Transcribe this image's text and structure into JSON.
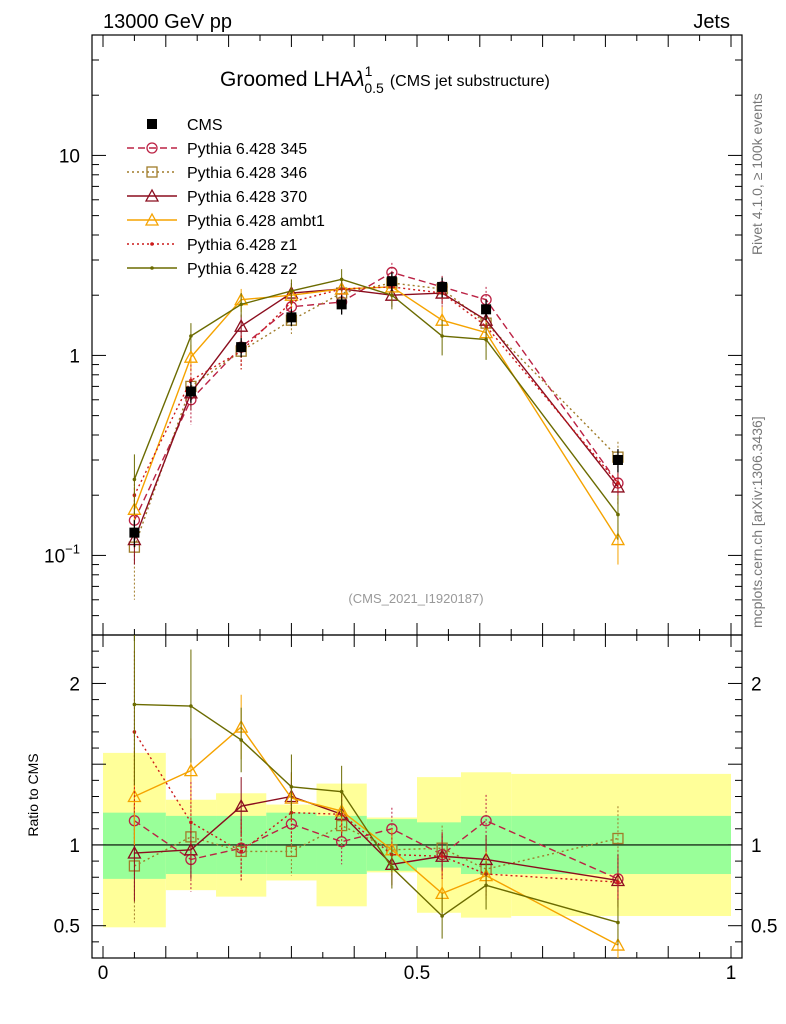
{
  "header": {
    "left": "13000 GeV pp",
    "right": "Jets"
  },
  "title": {
    "main": "Groomed LHA",
    "lambda": "λ",
    "sup": "1",
    "sub": "0.5",
    "suffix": "(CMS jet substructure)"
  },
  "side_labels": {
    "upper": "Rivet 4.1.0, ≥ 100k events",
    "lower": "mcplots.cern.ch [arXiv:1306.3436]"
  },
  "analysis_id": "(CMS_2021_I1920187)",
  "ratio_ylabel": "Ratio to CMS",
  "colors": {
    "data": "#000000",
    "band_inner": "#99ff99",
    "band_outer": "#ffff99"
  },
  "chart_data": [
    {
      "type": "line",
      "panel": "main",
      "yscale": "log",
      "xlim": [
        0,
        1
      ],
      "ylim": [
        0.04,
        40
      ],
      "yticks": [
        {
          "v": 0.1,
          "b": "10",
          "e": "−1"
        },
        {
          "v": 1,
          "t": "1"
        },
        {
          "v": 10,
          "t": "10"
        }
      ],
      "xticks": [
        {
          "v": 0,
          "t": "0"
        },
        {
          "v": 0.5,
          "t": "0.5"
        },
        {
          "v": 1,
          "t": "1"
        }
      ],
      "x": [
        0.05,
        0.14,
        0.22,
        0.3,
        0.38,
        0.46,
        0.54,
        0.61,
        0.82
      ],
      "data_series": {
        "name": "CMS",
        "values": [
          0.13,
          0.66,
          1.1,
          1.55,
          1.8,
          2.35,
          2.2,
          1.7,
          0.3
        ],
        "errors": [
          0.02,
          0.08,
          0.12,
          0.15,
          0.2,
          0.25,
          0.25,
          0.2,
          0.04
        ]
      },
      "series": [
        {
          "name": "Pythia 6.428 345",
          "color": "#bb2244",
          "marker": "circle",
          "dash": "7,4",
          "values": [
            0.15,
            0.6,
            1.1,
            1.75,
            1.85,
            2.6,
            2.2,
            1.9,
            0.23
          ],
          "errors": [
            0.04,
            0.15,
            0.22,
            0.25,
            0.25,
            0.3,
            0.3,
            0.3,
            0.05
          ]
        },
        {
          "name": "Pythia 6.428 346",
          "color": "#a07c2a",
          "marker": "square",
          "dash": "2,3",
          "values": [
            0.11,
            0.7,
            1.05,
            1.5,
            2.05,
            2.3,
            2.15,
            1.45,
            0.31
          ],
          "errors": [
            0.05,
            0.15,
            0.2,
            0.22,
            0.25,
            0.3,
            0.3,
            0.25,
            0.06
          ]
        },
        {
          "name": "Pythia 6.428 370",
          "color": "#8b0d1e",
          "marker": "triangle",
          "dash": "",
          "values": [
            0.12,
            0.65,
            1.4,
            2.05,
            2.15,
            2.0,
            2.05,
            1.5,
            0.22
          ],
          "errors": [
            0.03,
            0.12,
            0.2,
            0.25,
            0.25,
            0.25,
            0.25,
            0.22,
            0.04
          ]
        },
        {
          "name": "Pythia 6.428 ambt1",
          "color": "#f5a300",
          "marker": "triangle",
          "dash": "",
          "values": [
            0.17,
            0.98,
            1.9,
            2.0,
            2.15,
            2.2,
            1.5,
            1.3,
            0.12
          ],
          "errors": [
            0.05,
            0.15,
            0.25,
            0.25,
            0.3,
            0.3,
            0.25,
            0.2,
            0.03
          ]
        },
        {
          "name": "Pythia 6.428 z1",
          "color": "#cc1a1a",
          "marker": "dot",
          "dash": "2,3",
          "values": [
            0.2,
            0.75,
            1.05,
            1.85,
            2.15,
            2.2,
            2.05,
            1.4,
            0.23
          ],
          "errors": [
            0.05,
            0.15,
            0.2,
            0.25,
            0.3,
            0.3,
            0.3,
            0.25,
            0.05
          ]
        },
        {
          "name": "Pythia 6.428 z2",
          "color": "#6b6b00",
          "marker": "dot",
          "dash": "",
          "values": [
            0.24,
            1.25,
            1.8,
            2.1,
            2.4,
            2.0,
            1.25,
            1.2,
            0.16
          ],
          "errors": [
            0.08,
            0.2,
            0.25,
            0.3,
            0.3,
            0.3,
            0.25,
            0.25,
            0.04
          ]
        }
      ]
    },
    {
      "type": "line",
      "panel": "ratio",
      "ylim": [
        0.3,
        2.3
      ],
      "yticks": [
        {
          "v": 0.5,
          "t": "0.5"
        },
        {
          "v": 1,
          "t": "1"
        },
        {
          "v": 2,
          "t": "2"
        }
      ],
      "xticks": [
        {
          "v": 0,
          "t": "0"
        },
        {
          "v": 0.5,
          "t": "0.5"
        },
        {
          "v": 1,
          "t": "1"
        }
      ],
      "x": [
        0.05,
        0.14,
        0.22,
        0.3,
        0.38,
        0.46,
        0.54,
        0.61,
        0.82
      ],
      "bands": {
        "edges": [
          0,
          0.1,
          0.18,
          0.26,
          0.34,
          0.42,
          0.5,
          0.57,
          0.65,
          1.0
        ],
        "inner": [
          [
            0.79,
            1.2
          ],
          [
            0.82,
            1.18
          ],
          [
            0.82,
            1.18
          ],
          [
            0.82,
            1.2
          ],
          [
            0.82,
            1.18
          ],
          [
            0.84,
            1.16
          ],
          [
            0.86,
            1.14
          ],
          [
            0.82,
            1.18
          ],
          [
            0.82,
            1.18
          ]
        ],
        "outer": [
          [
            0.49,
            1.57
          ],
          [
            0.72,
            1.28
          ],
          [
            0.68,
            1.32
          ],
          [
            0.78,
            1.25
          ],
          [
            0.62,
            1.38
          ],
          [
            0.83,
            1.17
          ],
          [
            0.58,
            1.42
          ],
          [
            0.55,
            1.45
          ],
          [
            0.56,
            1.44
          ]
        ]
      },
      "series": [
        {
          "name": "Pythia 6.428 345",
          "values": [
            1.15,
            0.91,
            0.98,
            1.13,
            1.02,
            1.1,
            0.94,
            1.15,
            0.79
          ],
          "errors": [
            0.25,
            0.2,
            0.18,
            0.15,
            0.14,
            0.13,
            0.14,
            0.16,
            0.18
          ]
        },
        {
          "name": "Pythia 6.428 346",
          "values": [
            0.87,
            1.05,
            0.96,
            0.96,
            1.12,
            0.97,
            0.98,
            0.85,
            1.04
          ],
          "errors": [
            0.35,
            0.2,
            0.18,
            0.15,
            0.14,
            0.13,
            0.14,
            0.16,
            0.2
          ]
        },
        {
          "name": "Pythia 6.428 370",
          "values": [
            0.95,
            0.97,
            1.24,
            1.3,
            1.19,
            0.88,
            0.93,
            0.91,
            0.78
          ],
          "errors": [
            0.3,
            0.18,
            0.18,
            0.15,
            0.14,
            0.13,
            0.14,
            0.15,
            0.16
          ]
        },
        {
          "name": "Pythia 6.428 ambt1",
          "values": [
            1.3,
            1.46,
            1.73,
            1.29,
            1.21,
            0.97,
            0.7,
            0.81,
            0.38
          ],
          "errors": [
            0.3,
            0.2,
            0.2,
            0.15,
            0.14,
            0.13,
            0.14,
            0.15,
            0.1
          ]
        },
        {
          "name": "Pythia 6.428 z1",
          "values": [
            1.7,
            1.14,
            0.96,
            1.2,
            1.19,
            0.94,
            0.93,
            0.82,
            0.77
          ],
          "errors": [
            0.5,
            0.25,
            0.18,
            0.18,
            0.14,
            0.13,
            0.14,
            0.15,
            0.16
          ]
        },
        {
          "name": "Pythia 6.428 z2",
          "values": [
            1.87,
            1.86,
            1.65,
            1.36,
            1.33,
            0.86,
            0.56,
            0.75,
            0.52
          ],
          "errors": [
            0.5,
            0.35,
            0.2,
            0.2,
            0.16,
            0.13,
            0.14,
            0.15,
            0.14
          ]
        }
      ]
    }
  ]
}
